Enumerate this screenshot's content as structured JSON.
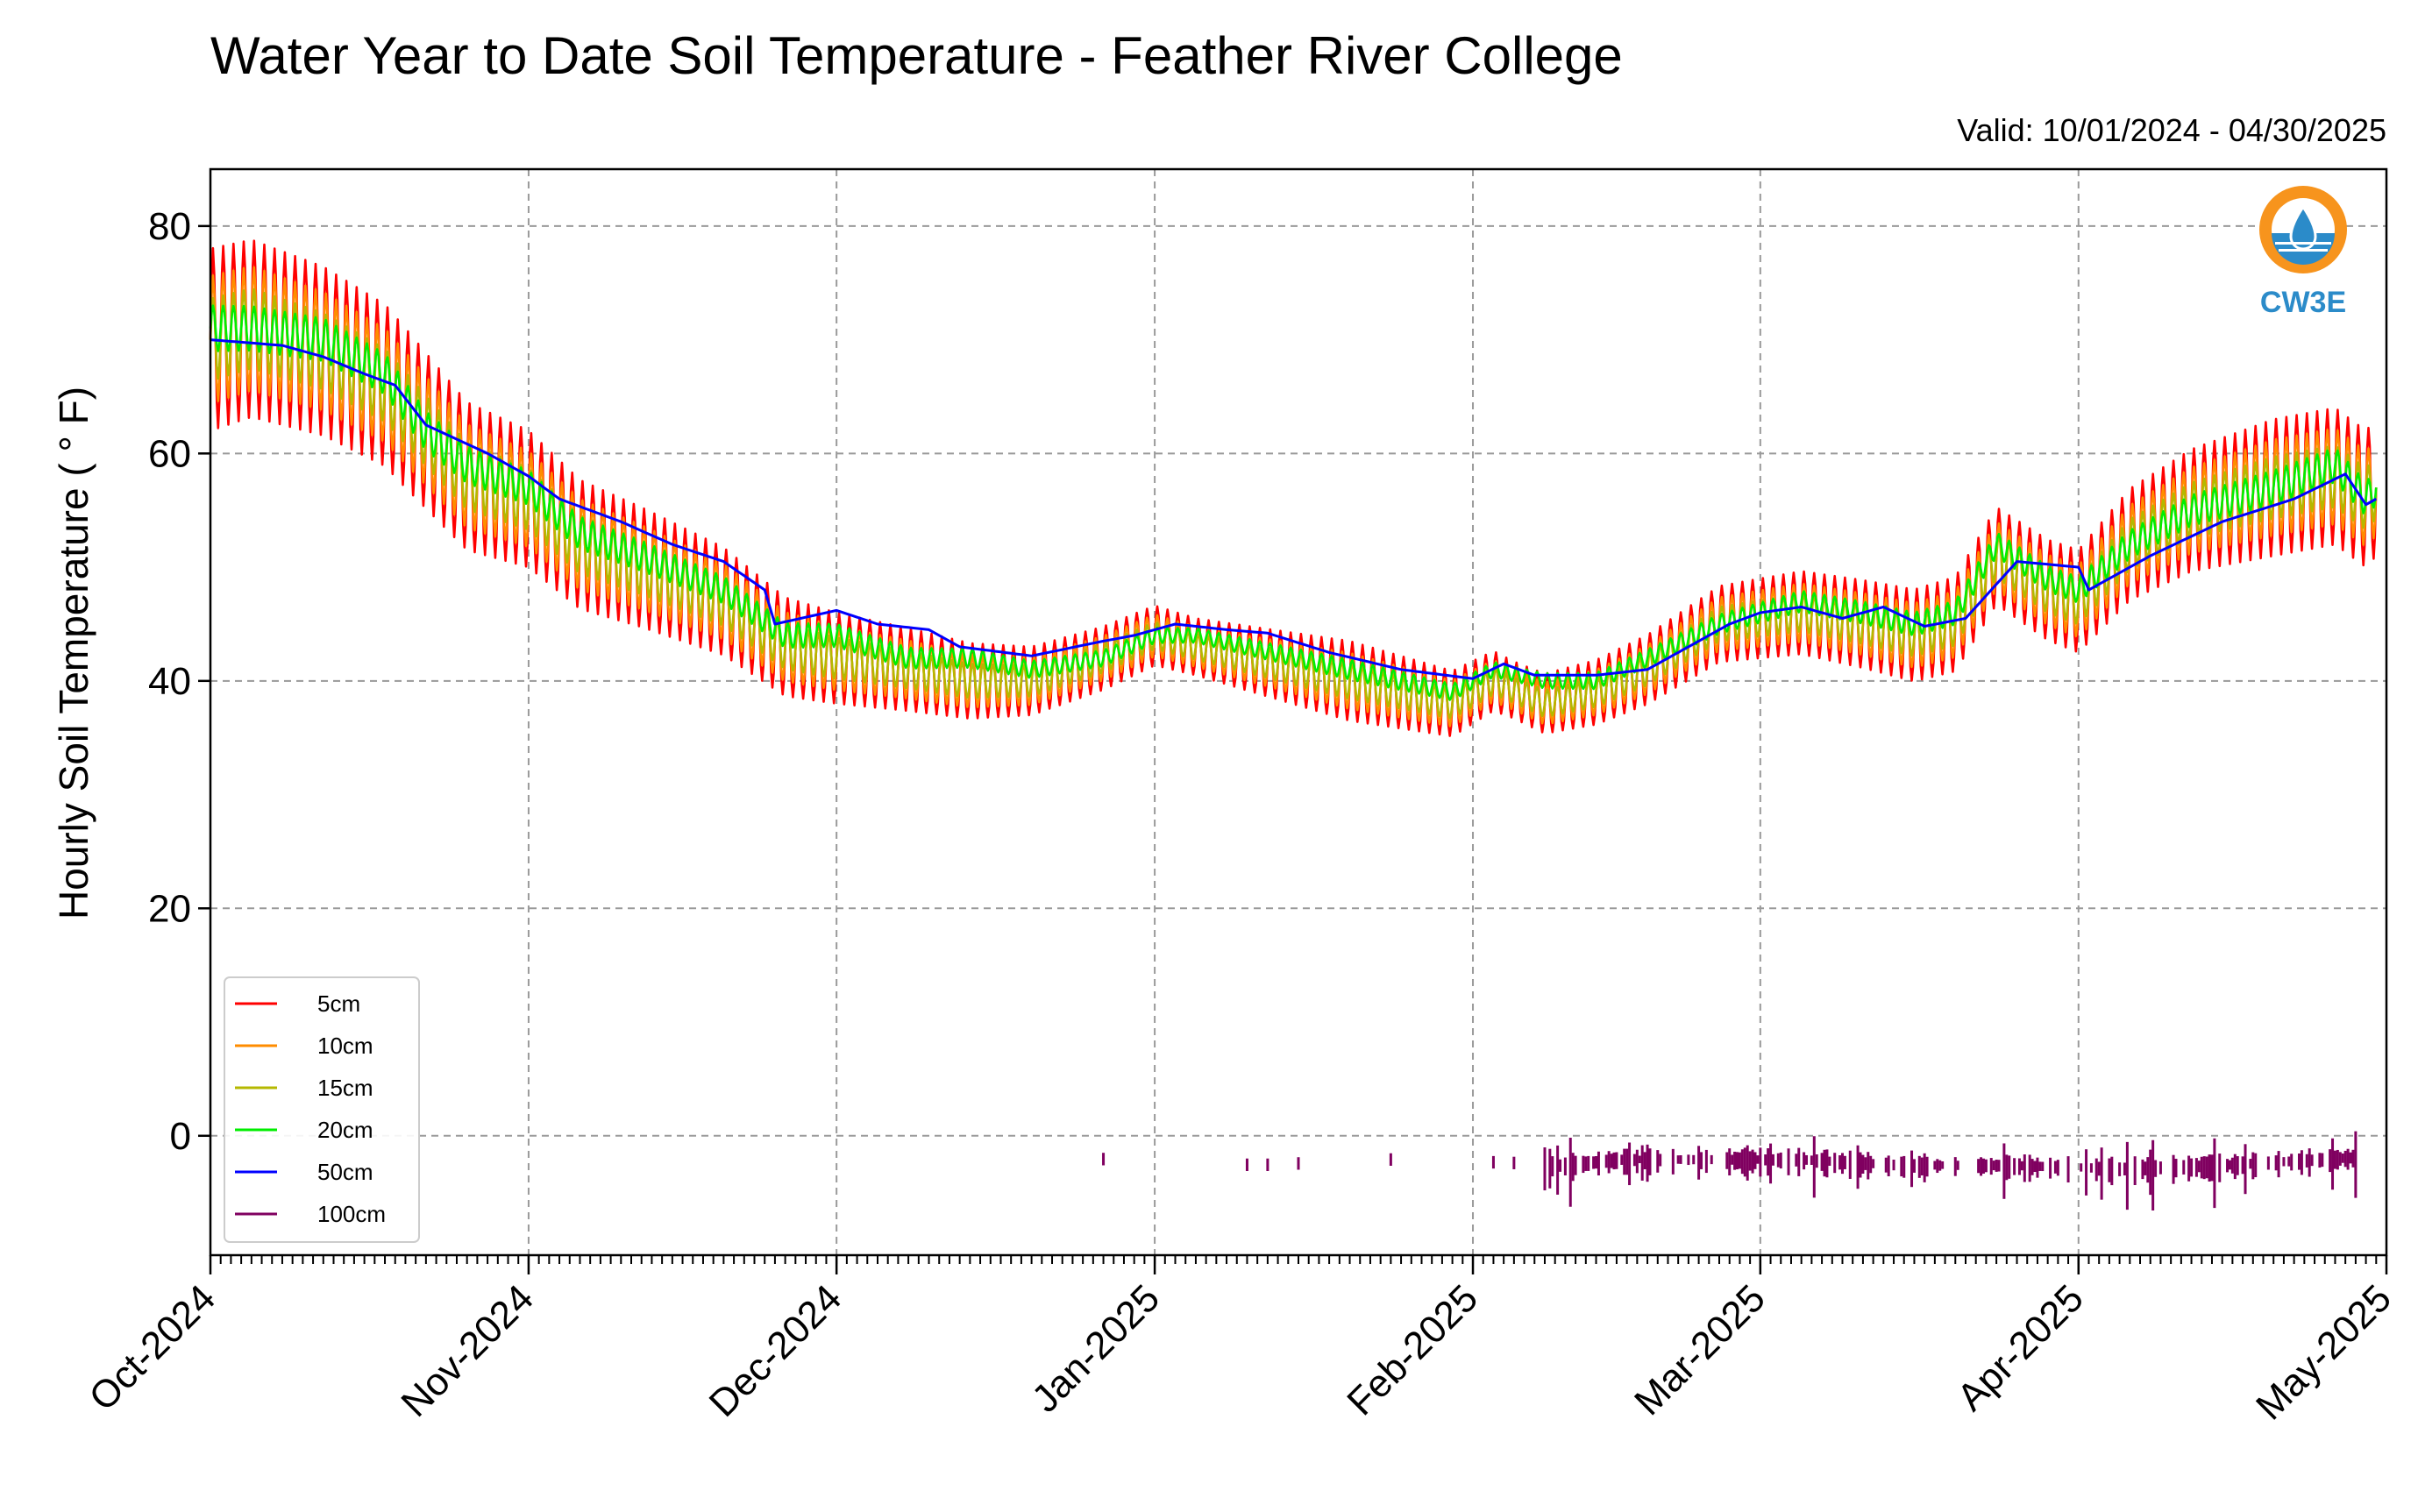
{
  "chart_data": {
    "type": "line",
    "title": "Water Year to Date Soil Temperature - Feather River College",
    "subtitle": "Valid: 10/01/2024 - 04/30/2025",
    "ylabel": "Hourly Soil Temperature ( ° F)",
    "xlabel": "",
    "ylim": [
      -10.5,
      85
    ],
    "yticks": [
      0,
      20,
      40,
      60,
      80
    ],
    "x_start": "2024-10-01",
    "x_end": "2025-05-01",
    "xticks": [
      {
        "date": "2024-10-01",
        "label": "Oct-2024"
      },
      {
        "date": "2024-11-01",
        "label": "Nov-2024"
      },
      {
        "date": "2024-12-01",
        "label": "Dec-2024"
      },
      {
        "date": "2025-01-01",
        "label": "Jan-2025"
      },
      {
        "date": "2025-02-01",
        "label": "Feb-2025"
      },
      {
        "date": "2025-03-01",
        "label": "Mar-2025"
      },
      {
        "date": "2025-04-01",
        "label": "Apr-2025"
      },
      {
        "date": "2025-05-01",
        "label": "May-2025"
      }
    ],
    "grid": true,
    "legend_position": "lower-left",
    "logo_text": "CW3E",
    "series": [
      {
        "name": "5cm",
        "color": "#ff0000",
        "amp_factor": 1.0,
        "points": [
          {
            "x": "2024-10-01",
            "y": 70
          },
          {
            "x": "2024-10-05",
            "y": 71
          },
          {
            "x": "2024-10-12",
            "y": 69
          },
          {
            "x": "2024-10-18",
            "y": 66
          },
          {
            "x": "2024-10-22",
            "y": 62
          },
          {
            "x": "2024-10-26",
            "y": 58
          },
          {
            "x": "2024-11-01",
            "y": 56
          },
          {
            "x": "2024-11-06",
            "y": 52
          },
          {
            "x": "2024-11-12",
            "y": 50
          },
          {
            "x": "2024-11-20",
            "y": 47
          },
          {
            "x": "2024-11-26",
            "y": 43
          },
          {
            "x": "2024-12-01",
            "y": 42
          },
          {
            "x": "2024-12-08",
            "y": 41
          },
          {
            "x": "2024-12-14",
            "y": 40
          },
          {
            "x": "2024-12-20",
            "y": 40
          },
          {
            "x": "2024-12-27",
            "y": 42
          },
          {
            "x": "2025-01-01",
            "y": 44
          },
          {
            "x": "2025-01-05",
            "y": 43
          },
          {
            "x": "2025-01-10",
            "y": 42
          },
          {
            "x": "2025-01-20",
            "y": 40
          },
          {
            "x": "2025-01-30",
            "y": 38
          },
          {
            "x": "2025-02-03",
            "y": 40
          },
          {
            "x": "2025-02-08",
            "y": 38
          },
          {
            "x": "2025-02-13",
            "y": 39
          },
          {
            "x": "2025-02-18",
            "y": 41
          },
          {
            "x": "2025-02-25",
            "y": 45
          },
          {
            "x": "2025-03-05",
            "y": 46
          },
          {
            "x": "2025-03-11",
            "y": 45
          },
          {
            "x": "2025-03-16",
            "y": 44
          },
          {
            "x": "2025-03-20",
            "y": 45
          },
          {
            "x": "2025-03-24",
            "y": 51
          },
          {
            "x": "2025-03-29",
            "y": 48
          },
          {
            "x": "2025-04-01",
            "y": 47
          },
          {
            "x": "2025-04-06",
            "y": 52
          },
          {
            "x": "2025-04-12",
            "y": 55
          },
          {
            "x": "2025-04-20",
            "y": 57
          },
          {
            "x": "2025-04-26",
            "y": 58
          },
          {
            "x": "2025-04-29",
            "y": 56
          },
          {
            "x": "2025-04-30",
            "y": 57
          }
        ]
      },
      {
        "name": "10cm",
        "color": "#ff8c00",
        "amp_factor": 0.7,
        "points": [
          {
            "x": "2024-10-01",
            "y": 70
          },
          {
            "x": "2024-10-05",
            "y": 71
          },
          {
            "x": "2024-10-12",
            "y": 69
          },
          {
            "x": "2024-10-18",
            "y": 66
          },
          {
            "x": "2024-10-22",
            "y": 62
          },
          {
            "x": "2024-10-26",
            "y": 58
          },
          {
            "x": "2024-11-01",
            "y": 56
          },
          {
            "x": "2024-11-06",
            "y": 52
          },
          {
            "x": "2024-11-12",
            "y": 50
          },
          {
            "x": "2024-11-20",
            "y": 47
          },
          {
            "x": "2024-11-26",
            "y": 43
          },
          {
            "x": "2024-12-01",
            "y": 42
          },
          {
            "x": "2024-12-08",
            "y": 41
          },
          {
            "x": "2024-12-14",
            "y": 40
          },
          {
            "x": "2024-12-20",
            "y": 40
          },
          {
            "x": "2024-12-27",
            "y": 42
          },
          {
            "x": "2025-01-01",
            "y": 44
          },
          {
            "x": "2025-01-05",
            "y": 43
          },
          {
            "x": "2025-01-10",
            "y": 42
          },
          {
            "x": "2025-01-20",
            "y": 40
          },
          {
            "x": "2025-01-30",
            "y": 38
          },
          {
            "x": "2025-02-03",
            "y": 40
          },
          {
            "x": "2025-02-08",
            "y": 38
          },
          {
            "x": "2025-02-13",
            "y": 39
          },
          {
            "x": "2025-02-18",
            "y": 41
          },
          {
            "x": "2025-02-25",
            "y": 45
          },
          {
            "x": "2025-03-05",
            "y": 46
          },
          {
            "x": "2025-03-11",
            "y": 45
          },
          {
            "x": "2025-03-16",
            "y": 44
          },
          {
            "x": "2025-03-20",
            "y": 45
          },
          {
            "x": "2025-03-24",
            "y": 51
          },
          {
            "x": "2025-03-29",
            "y": 48
          },
          {
            "x": "2025-04-01",
            "y": 47
          },
          {
            "x": "2025-04-06",
            "y": 52
          },
          {
            "x": "2025-04-12",
            "y": 55
          },
          {
            "x": "2025-04-20",
            "y": 57
          },
          {
            "x": "2025-04-26",
            "y": 58
          },
          {
            "x": "2025-04-29",
            "y": 56
          },
          {
            "x": "2025-04-30",
            "y": 57
          }
        ]
      },
      {
        "name": "15cm",
        "color": "#b5b800",
        "amp_factor": 0.45,
        "points": [
          {
            "x": "2024-10-01",
            "y": 70
          },
          {
            "x": "2024-10-05",
            "y": 71
          },
          {
            "x": "2024-10-12",
            "y": 69
          },
          {
            "x": "2024-10-18",
            "y": 66
          },
          {
            "x": "2024-10-22",
            "y": 62
          },
          {
            "x": "2024-10-26",
            "y": 58
          },
          {
            "x": "2024-11-01",
            "y": 56
          },
          {
            "x": "2024-11-06",
            "y": 52
          },
          {
            "x": "2024-11-12",
            "y": 50
          },
          {
            "x": "2024-11-20",
            "y": 47
          },
          {
            "x": "2024-11-26",
            "y": 43
          },
          {
            "x": "2024-12-01",
            "y": 42
          },
          {
            "x": "2024-12-08",
            "y": 41
          },
          {
            "x": "2024-12-14",
            "y": 40
          },
          {
            "x": "2024-12-20",
            "y": 40
          },
          {
            "x": "2024-12-27",
            "y": 42
          },
          {
            "x": "2025-01-01",
            "y": 44
          },
          {
            "x": "2025-01-05",
            "y": 43
          },
          {
            "x": "2025-01-10",
            "y": 42
          },
          {
            "x": "2025-01-20",
            "y": 40
          },
          {
            "x": "2025-01-30",
            "y": 38
          },
          {
            "x": "2025-02-03",
            "y": 40
          },
          {
            "x": "2025-02-08",
            "y": 38
          },
          {
            "x": "2025-02-13",
            "y": 39
          },
          {
            "x": "2025-02-18",
            "y": 41
          },
          {
            "x": "2025-02-25",
            "y": 45
          },
          {
            "x": "2025-03-05",
            "y": 46
          },
          {
            "x": "2025-03-11",
            "y": 45
          },
          {
            "x": "2025-03-16",
            "y": 44
          },
          {
            "x": "2025-03-20",
            "y": 45
          },
          {
            "x": "2025-03-24",
            "y": 51
          },
          {
            "x": "2025-03-29",
            "y": 48
          },
          {
            "x": "2025-04-01",
            "y": 47
          },
          {
            "x": "2025-04-06",
            "y": 52
          },
          {
            "x": "2025-04-12",
            "y": 55
          },
          {
            "x": "2025-04-20",
            "y": 57
          },
          {
            "x": "2025-04-26",
            "y": 58
          },
          {
            "x": "2025-04-29",
            "y": 56
          },
          {
            "x": "2025-04-30",
            "y": 57
          }
        ]
      },
      {
        "name": "20cm",
        "color": "#00ee00",
        "amp_factor": 0.25,
        "points": [
          {
            "x": "2024-10-01",
            "y": 71
          },
          {
            "x": "2024-10-05",
            "y": 71
          },
          {
            "x": "2024-10-12",
            "y": 70
          },
          {
            "x": "2024-10-18",
            "y": 67
          },
          {
            "x": "2024-10-22",
            "y": 62
          },
          {
            "x": "2024-10-26",
            "y": 59
          },
          {
            "x": "2024-11-01",
            "y": 57
          },
          {
            "x": "2024-11-06",
            "y": 53
          },
          {
            "x": "2024-11-12",
            "y": 51
          },
          {
            "x": "2024-11-20",
            "y": 48
          },
          {
            "x": "2024-11-26",
            "y": 44
          },
          {
            "x": "2024-12-01",
            "y": 44
          },
          {
            "x": "2024-12-08",
            "y": 42
          },
          {
            "x": "2024-12-14",
            "y": 42
          },
          {
            "x": "2024-12-20",
            "y": 41
          },
          {
            "x": "2024-12-27",
            "y": 42
          },
          {
            "x": "2025-01-01",
            "y": 44
          },
          {
            "x": "2025-01-05",
            "y": 44
          },
          {
            "x": "2025-01-10",
            "y": 43
          },
          {
            "x": "2025-01-20",
            "y": 41
          },
          {
            "x": "2025-01-30",
            "y": 39
          },
          {
            "x": "2025-02-03",
            "y": 41
          },
          {
            "x": "2025-02-08",
            "y": 40
          },
          {
            "x": "2025-02-13",
            "y": 40
          },
          {
            "x": "2025-02-18",
            "y": 42
          },
          {
            "x": "2025-02-25",
            "y": 45
          },
          {
            "x": "2025-03-05",
            "y": 47
          },
          {
            "x": "2025-03-11",
            "y": 46
          },
          {
            "x": "2025-03-16",
            "y": 45
          },
          {
            "x": "2025-03-20",
            "y": 46
          },
          {
            "x": "2025-03-24",
            "y": 52
          },
          {
            "x": "2025-03-29",
            "y": 49
          },
          {
            "x": "2025-04-01",
            "y": 48
          },
          {
            "x": "2025-04-06",
            "y": 52
          },
          {
            "x": "2025-04-12",
            "y": 55
          },
          {
            "x": "2025-04-20",
            "y": 57
          },
          {
            "x": "2025-04-26",
            "y": 59
          },
          {
            "x": "2025-04-29",
            "y": 56
          },
          {
            "x": "2025-04-30",
            "y": 57
          }
        ]
      },
      {
        "name": "50cm",
        "color": "#0000ff",
        "amp_factor": 0,
        "points": [
          {
            "x": "2024-10-01",
            "y": 70
          },
          {
            "x": "2024-10-08",
            "y": 69.5
          },
          {
            "x": "2024-10-12",
            "y": 68.5
          },
          {
            "x": "2024-10-16",
            "y": 67
          },
          {
            "x": "2024-10-19",
            "y": 66
          },
          {
            "x": "2024-10-22",
            "y": 62.5
          },
          {
            "x": "2024-10-28",
            "y": 60
          },
          {
            "x": "2024-11-01",
            "y": 58
          },
          {
            "x": "2024-11-04",
            "y": 56
          },
          {
            "x": "2024-11-10",
            "y": 54
          },
          {
            "x": "2024-11-15",
            "y": 52
          },
          {
            "x": "2024-11-20",
            "y": 50.5
          },
          {
            "x": "2024-11-24",
            "y": 48
          },
          {
            "x": "2024-11-25",
            "y": 45
          },
          {
            "x": "2024-12-01",
            "y": 46.2
          },
          {
            "x": "2024-12-05",
            "y": 45
          },
          {
            "x": "2024-12-10",
            "y": 44.5
          },
          {
            "x": "2024-12-13",
            "y": 43
          },
          {
            "x": "2024-12-20",
            "y": 42.2
          },
          {
            "x": "2024-12-27",
            "y": 43.5
          },
          {
            "x": "2024-12-30",
            "y": 44
          },
          {
            "x": "2025-01-03",
            "y": 45
          },
          {
            "x": "2025-01-08",
            "y": 44.5
          },
          {
            "x": "2025-01-12",
            "y": 44.2
          },
          {
            "x": "2025-01-18",
            "y": 42.5
          },
          {
            "x": "2025-01-25",
            "y": 41
          },
          {
            "x": "2025-02-01",
            "y": 40.2
          },
          {
            "x": "2025-02-04",
            "y": 41.5
          },
          {
            "x": "2025-02-07",
            "y": 40.5
          },
          {
            "x": "2025-02-13",
            "y": 40.5
          },
          {
            "x": "2025-02-18",
            "y": 41
          },
          {
            "x": "2025-02-22",
            "y": 43
          },
          {
            "x": "2025-02-26",
            "y": 45
          },
          {
            "x": "2025-03-01",
            "y": 46
          },
          {
            "x": "2025-03-05",
            "y": 46.5
          },
          {
            "x": "2025-03-09",
            "y": 45.5
          },
          {
            "x": "2025-03-13",
            "y": 46.5
          },
          {
            "x": "2025-03-17",
            "y": 44.8
          },
          {
            "x": "2025-03-21",
            "y": 45.5
          },
          {
            "x": "2025-03-26",
            "y": 50.5
          },
          {
            "x": "2025-04-01",
            "y": 50
          },
          {
            "x": "2025-04-02",
            "y": 48
          },
          {
            "x": "2025-04-08",
            "y": 51
          },
          {
            "x": "2025-04-15",
            "y": 54
          },
          {
            "x": "2025-04-22",
            "y": 56
          },
          {
            "x": "2025-04-27",
            "y": 58.2
          },
          {
            "x": "2025-04-29",
            "y": 55.5
          },
          {
            "x": "2025-04-30",
            "y": 56
          }
        ]
      },
      {
        "name": "100cm",
        "color": "#800060",
        "amp_factor": 0,
        "points": [
          {
            "x": "2024-12-27",
            "y": -2
          },
          {
            "x": "2025-01-05",
            "y": -2.5
          },
          {
            "x": "2025-01-12",
            "y": -2.5
          },
          {
            "x": "2025-01-25",
            "y": -2
          },
          {
            "x": "2025-02-10",
            "y": -2.5
          },
          {
            "x": "2025-02-15",
            "y": -2
          },
          {
            "x": "2025-02-25",
            "y": -2
          },
          {
            "x": "2025-03-05",
            "y": -2
          },
          {
            "x": "2025-03-15",
            "y": -2.5
          },
          {
            "x": "2025-03-25",
            "y": -2.5
          },
          {
            "x": "2025-04-05",
            "y": -2.8
          },
          {
            "x": "2025-04-15",
            "y": -2.5
          },
          {
            "x": "2025-04-28",
            "y": -1.8
          }
        ]
      }
    ]
  }
}
